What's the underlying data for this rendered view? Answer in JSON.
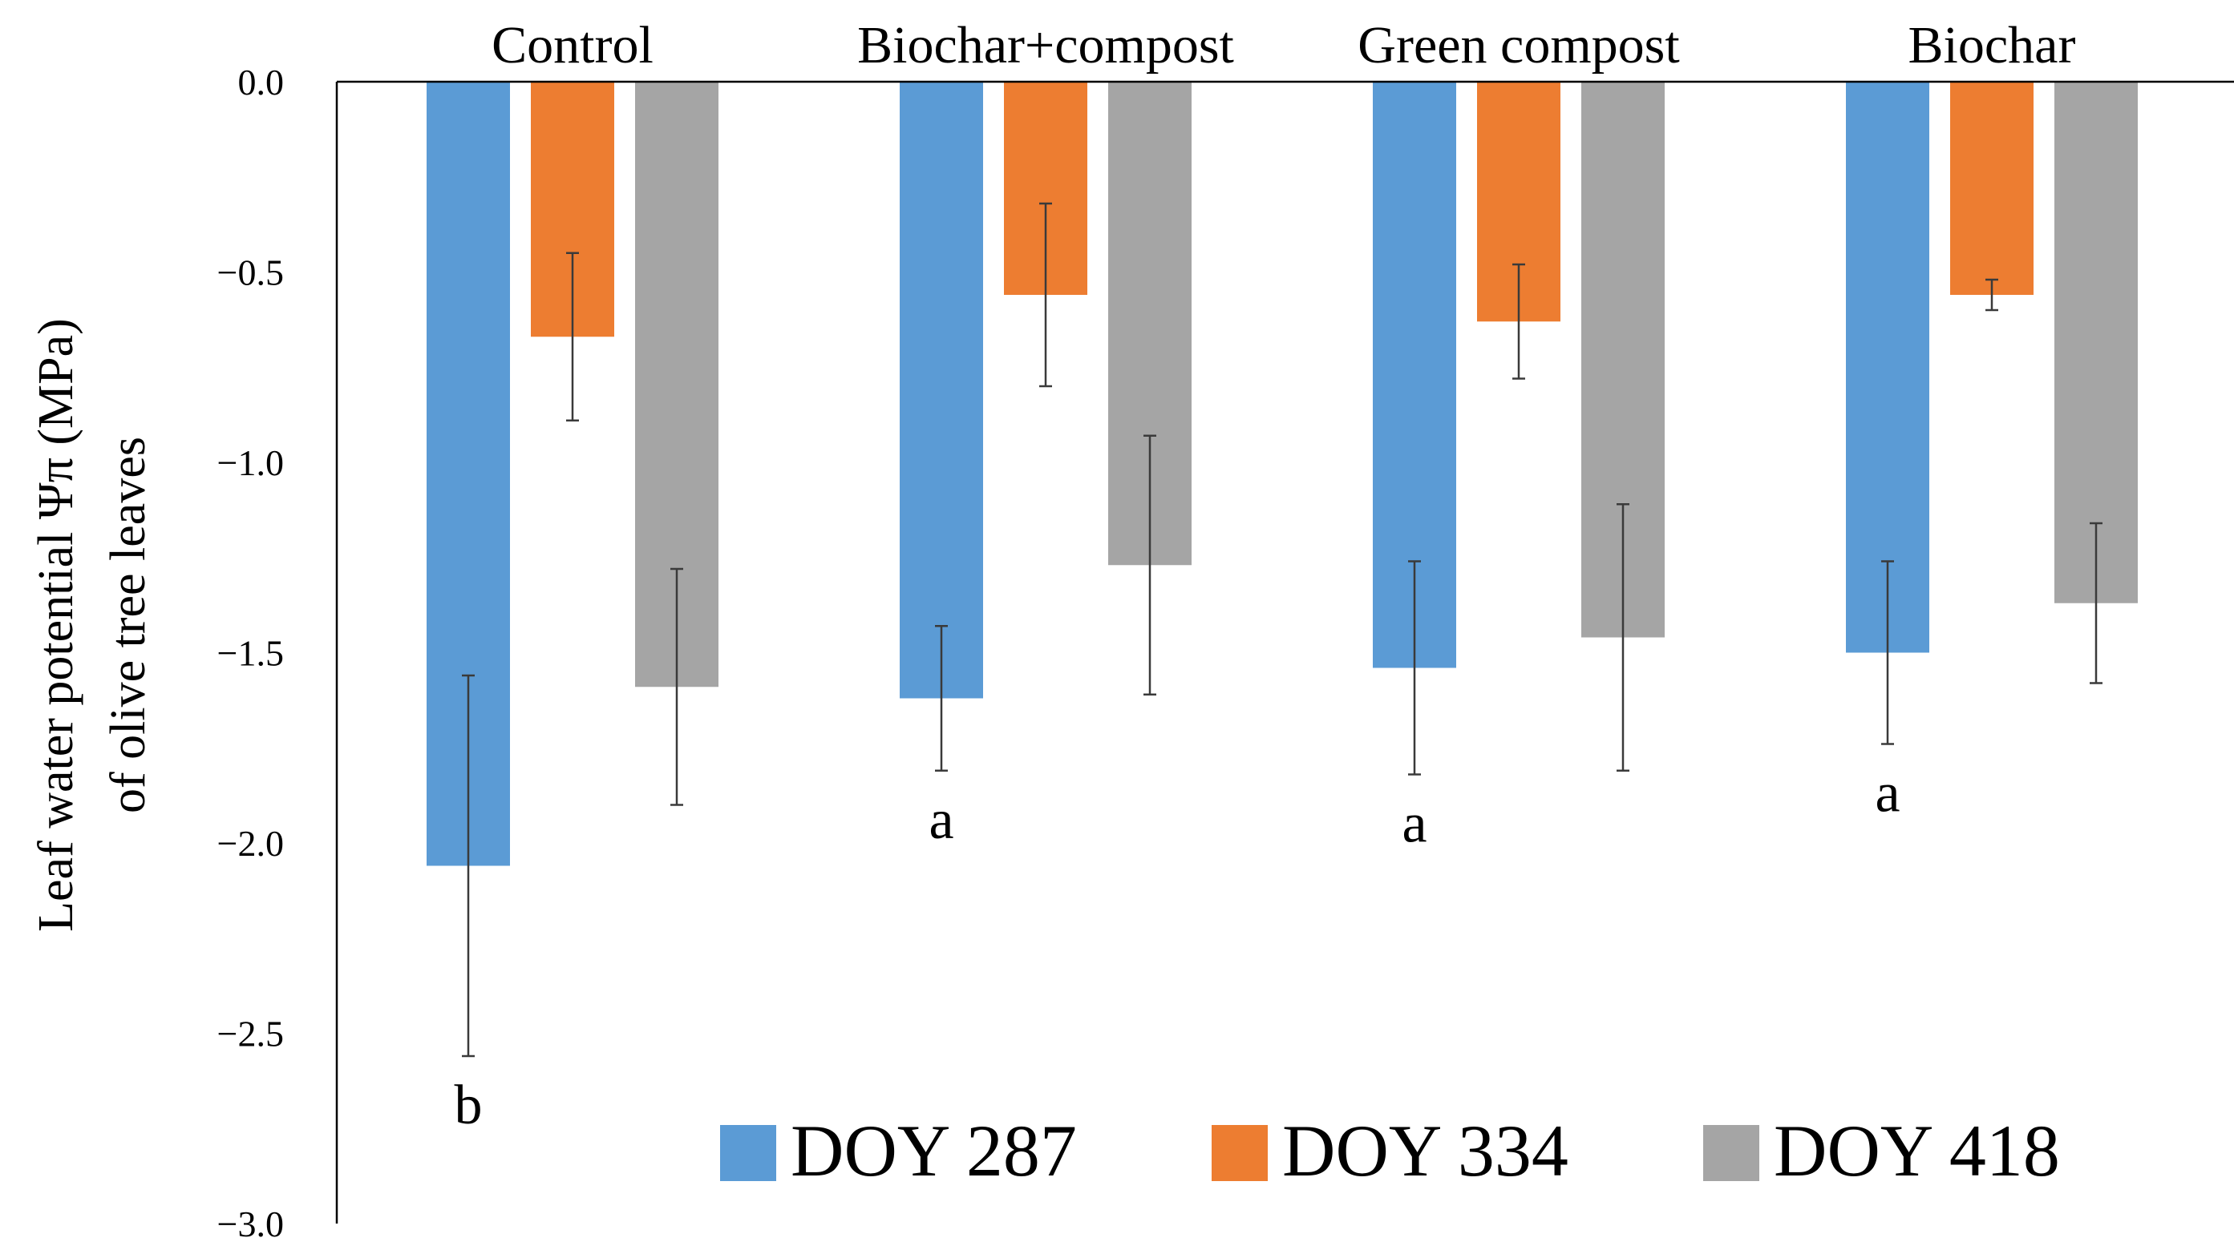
{
  "chart_data": {
    "type": "bar",
    "title": "",
    "xlabel": "",
    "ylabel": "Leaf water potential Ψπ (MPa)",
    "ylabel2": "of olive tree leaves",
    "categories": [
      "Control",
      "Biochar+compost",
      "Green compost",
      "Biochar"
    ],
    "series": [
      {
        "name": "DOY 287",
        "color": "#5B9BD5",
        "values": [
          -2.06,
          -1.62,
          -1.54,
          -1.5
        ],
        "errors": [
          0.5,
          0.19,
          0.28,
          0.24
        ]
      },
      {
        "name": "DOY 334",
        "color": "#ED7D31",
        "values": [
          -0.67,
          -0.56,
          -0.63,
          -0.56
        ],
        "errors": [
          0.22,
          0.24,
          0.15,
          0.04
        ]
      },
      {
        "name": "DOY 418",
        "color": "#A5A5A5",
        "values": [
          -1.59,
          -1.27,
          -1.46,
          -1.37
        ],
        "errors": [
          0.31,
          0.34,
          0.35,
          0.21
        ]
      }
    ],
    "significance_labels": [
      {
        "category": "Control",
        "series": "DOY 287",
        "label": "b"
      },
      {
        "category": "Biochar+compost",
        "series": "DOY 287",
        "label": "a"
      },
      {
        "category": "Green compost",
        "series": "DOY 287",
        "label": "a"
      },
      {
        "category": "Biochar",
        "series": "DOY 287",
        "label": "a"
      }
    ],
    "ylim": [
      -3.0,
      0.0
    ],
    "yticks": [
      0.0,
      -0.5,
      -1.0,
      -1.5,
      -2.0,
      -2.5,
      -3.0
    ],
    "ytick_labels": [
      "0.0",
      "−0.5",
      "−1.0",
      "−1.5",
      "−2.0",
      "−2.5",
      "−3.0"
    ],
    "grid": false,
    "legend_position": "bottom-right",
    "category_labels_position": "top"
  }
}
